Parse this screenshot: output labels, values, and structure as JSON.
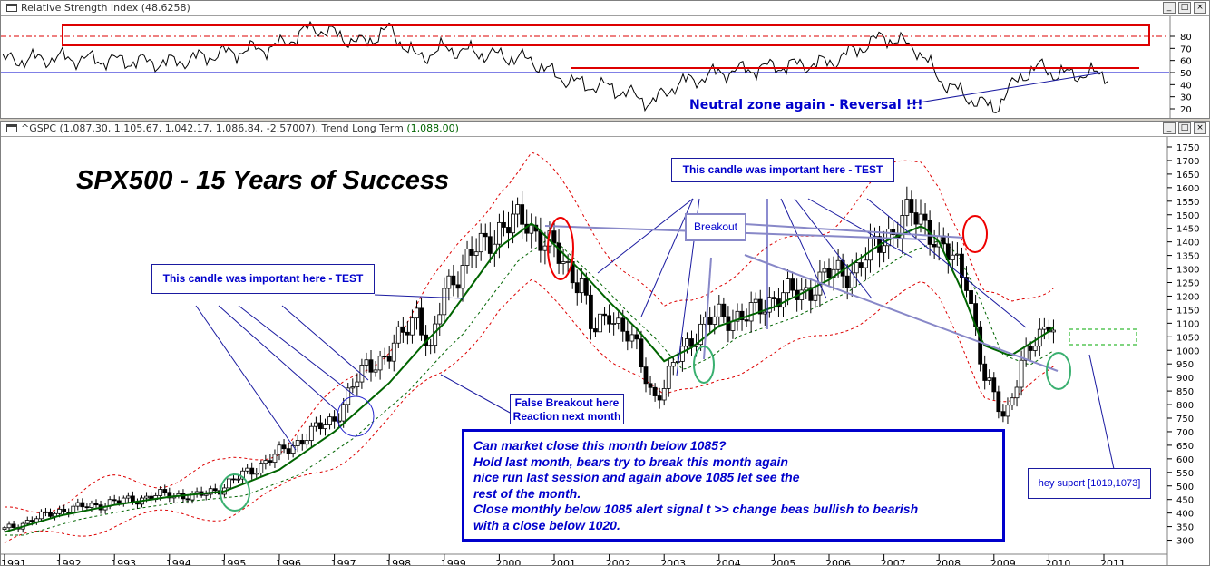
{
  "rsi_pane": {
    "title": "Relative Strength Index",
    "value": "(48.6258)",
    "annotation": "Neutral zone again - Reversal !!!"
  },
  "price_pane": {
    "title_prefix": "^GSPC (1,087.30, 1,105.67, 1,042.17, 1,086.84, -2.57007), Trend Long Term",
    "title_value": "(1,088.00)",
    "headline": "SPX500 -  15 Years of Success",
    "annotations": {
      "test_left": "This candle was important here - TEST",
      "test_top": "This candle was important here - TEST",
      "breakout": "Breakout",
      "false_breakout_1": "False Breakout here",
      "false_breakout_2": "Reaction next month",
      "support": "hey suport  [1019,1073]"
    },
    "commentary": [
      "Can market close this month below 1085?",
      "Hold last month, bears try to break this month again",
      "nice run last session and again above 1085 let see the",
      "rest of the month.",
      "Close monthly below 1085 alert signal t >> change beas bullish to bearish",
      "with a close below 1020."
    ]
  },
  "window_buttons": [
    "_",
    "□",
    "×"
  ],
  "colors": {
    "rsi_line": "#000000",
    "rsi_band": "#dd0000",
    "rsi_mid": "#0000cc",
    "candle": "#000000",
    "trend": "#006400",
    "envelope": "#dd0000",
    "annotation_text": "#0000cc",
    "annotation_line": "#1a1aa0",
    "breakout_line": "#8888c8",
    "circle_red": "#ee0000",
    "circle_green": "#3ab070",
    "circle_blue": "#2222cc",
    "support_zone": "#00aa00"
  },
  "chart_data": [
    {
      "type": "line",
      "name": "Relative Strength Index",
      "ylim": [
        10,
        95
      ],
      "y_ticks": [
        "80",
        "70",
        "60",
        "50",
        "40",
        "30",
        "20"
      ],
      "levels": {
        "upper": 80,
        "middle": 50,
        "lower": 20
      },
      "current_value": 48.6258,
      "x": [
        1991.0,
        1992.0,
        1993.0,
        1994.0,
        1995.0,
        1996.0,
        1996.6,
        1997.5,
        1998.0,
        1998.5,
        1999.0,
        2000.0,
        2000.6,
        2001.0,
        2001.5,
        2002.0,
        2002.5,
        2002.8,
        2003.2,
        2003.7,
        2004.0,
        2005.0,
        2006.0,
        2007.0,
        2007.6,
        2008.0,
        2008.5,
        2009.0,
        2009.5,
        2009.9,
        2010.1
      ],
      "y": [
        60,
        62,
        60,
        58,
        66,
        72,
        88,
        74,
        86,
        62,
        70,
        64,
        60,
        48,
        40,
        38,
        30,
        25,
        40,
        46,
        50,
        55,
        58,
        80,
        70,
        45,
        30,
        20,
        48,
        55,
        48.6
      ]
    },
    {
      "type": "candlestick",
      "name": "^GSPC",
      "frequency": "monthly",
      "x_ticks": [
        "1991",
        "1992",
        "1993",
        "1994",
        "1995",
        "1996",
        "1997",
        "1998",
        "1999",
        "2000",
        "2001",
        "2002",
        "2003",
        "2004",
        "2005",
        "2006",
        "2007",
        "2008",
        "2009",
        "2010",
        "2011"
      ],
      "y_ticks": [
        1750,
        1700,
        1650,
        1600,
        1550,
        1500,
        1450,
        1400,
        1350,
        1300,
        1250,
        1200,
        1150,
        1100,
        1050,
        1000,
        950,
        900,
        850,
        800,
        750,
        700,
        650,
        600,
        550,
        500,
        450,
        400,
        350,
        300
      ],
      "ylim": [
        275,
        1775
      ],
      "last": {
        "open": 1087.3,
        "high": 1105.67,
        "low": 1042.17,
        "close": 1086.84,
        "change": -2.57007
      },
      "price_path": {
        "x": [
          1991.0,
          1992.0,
          1993.0,
          1994.0,
          1994.5,
          1995.0,
          1996.0,
          1997.0,
          1997.6,
          1998.0,
          1998.5,
          1998.75,
          1999.0,
          1999.5,
          2000.0,
          2000.5,
          2000.7,
          2001.0,
          2001.5,
          2001.7,
          2002.0,
          2002.5,
          2002.8,
          2003.0,
          2003.3,
          2003.5,
          2004.0,
          2004.5,
          2005.0,
          2005.5,
          2006.0,
          2006.5,
          2007.0,
          2007.5,
          2007.8,
          2008.0,
          2008.5,
          2008.8,
          2009.2,
          2009.5,
          2009.8,
          2010.0,
          2010.1
        ],
        "y": [
          340,
          410,
          440,
          470,
          460,
          500,
          620,
          750,
          950,
          980,
          1150,
          980,
          1230,
          1350,
          1450,
          1480,
          1430,
          1360,
          1250,
          1050,
          1150,
          1000,
          830,
          860,
          1000,
          1050,
          1130,
          1120,
          1200,
          1210,
          1280,
          1300,
          1420,
          1500,
          1470,
          1380,
          1280,
          900,
          760,
          940,
          1050,
          1120,
          1087
        ]
      },
      "trend_long_term": {
        "x": [
          1991.0,
          1992.0,
          1993.0,
          1994.0,
          1995.0,
          1996.0,
          1997.0,
          1998.0,
          1998.7,
          1999.0,
          2000.0,
          2000.6,
          2001.0,
          2001.5,
          2002.0,
          2002.5,
          2003.0,
          2003.5,
          2004.0,
          2005.0,
          2006.0,
          2007.0,
          2007.7,
          2008.0,
          2008.4,
          2008.8,
          2009.3,
          2009.7,
          2010.0,
          2010.1
        ],
        "y": [
          330,
          390,
          430,
          460,
          480,
          560,
          700,
          880,
          1040,
          1100,
          1380,
          1470,
          1390,
          1290,
          1180,
          1080,
          960,
          1010,
          1090,
          1160,
          1260,
          1400,
          1460,
          1400,
          1230,
          1020,
          980,
          1030,
          1070,
          1088
        ]
      }
    }
  ]
}
